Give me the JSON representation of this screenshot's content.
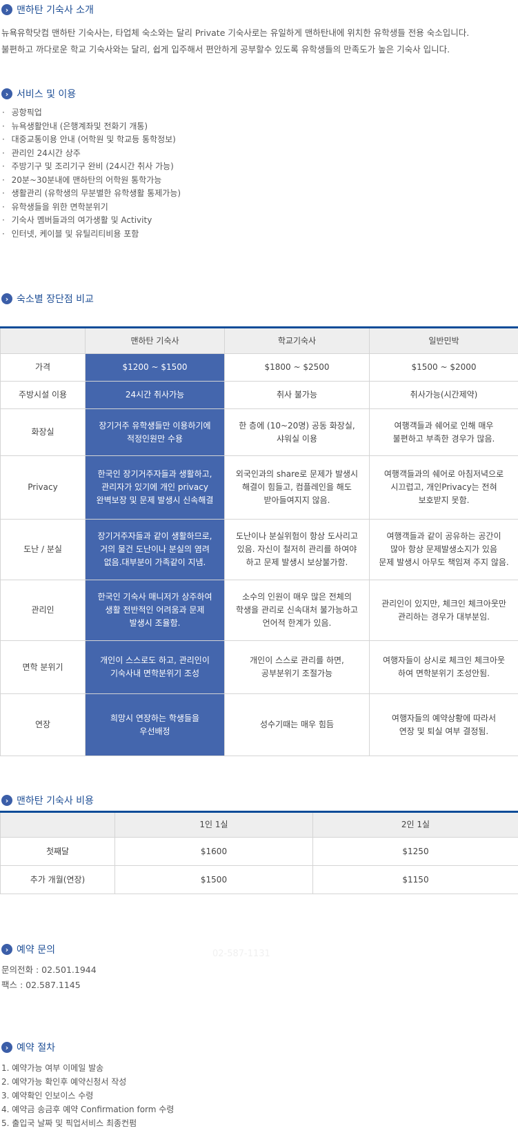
{
  "intro": {
    "title": "맨하탄 기숙사 소개",
    "lines": [
      "뉴욕유학닷컴 맨하탄 기숙사는, 타업체 숙소와는 달리 Private 기숙사로는 유일하게 맨하탄내에 위치한 유학생들 전용 숙소입니다.",
      "불편하고 까다로운 학교 기숙사와는 달리, 쉽게 입주해서 편안하게 공부할수 있도록 유학생들의 만족도가 높은 기숙사 입니다."
    ]
  },
  "services": {
    "title": "서비스 및 이용",
    "items": [
      "공항픽업",
      "뉴욕생활안내 (은행계좌및 전화기 개통)",
      "대중교통이용 안내 (어학원 및 학교등 통학정보)",
      "관리인 24시간 상주",
      "주방기구 및 조리기구 완비 (24시간 취사 가능)",
      "20분~30분내에 맨하탄의 어학원 통학가능",
      "생활관리 (유학생의 무분별한 유학생활 통제가능)",
      "유학생들을 위한 면학분위기",
      "기숙사 멤버들과의 여가생활 및 Activity",
      "인터넷, 케이블 및 유틸리티비용 포함"
    ]
  },
  "compare": {
    "title": "숙소별 장단점 비교",
    "headers": [
      "",
      "맨하탄 기숙사",
      "학교기숙사",
      "일반민박"
    ],
    "rows": [
      [
        "가격",
        "$1200 ~ $1500",
        "$1800 ~ $2500",
        "$1500 ~ $2000"
      ],
      [
        "주방시설 이용",
        "24시간 취사가능",
        "취사 불가능",
        "취사가능(시간제약)"
      ],
      [
        "화장실",
        "장기거주 유학생들만 이용하기에\n적정인원만 수용",
        "한 층에 (10~20명) 공동 화장실,\n샤워실 이용",
        "여행객들과 쉐어로 인해 매우\n불편하고 부족한 경우가 많음."
      ],
      [
        "Privacy",
        "한국인 장기거주자들과 생활하고,\n관리자가 있기에 개인 privacy\n완벽보장 및 문제 발생시 신속해결",
        "외국인과의 share로 문제가 발생시\n해결이 힘들고, 컴플레인을 해도\n받아들여지지 않음.",
        "여행객들과의 쉐어로 아침저녁으로\n시끄럽고, 개인Privacy는 전혀\n보호받지 못함."
      ],
      [
        "도난 / 분실",
        "장기거주자들과 같이 생활하므로,\n거의 물건 도난이나 분실의 염려\n없음.대부분이 가족같이 지냄.",
        "도난이나 분실위험이 항상 도사리고\n있음. 자신이 철저히 관리를 하여야\n하고 문제 발생시 보상불가함.",
        "여행객들과 같이 공유하는 공간이\n많아 항상 문제발생소지가 있음\n문제 발생시 아무도 책임져 주지 않음."
      ],
      [
        "관리인",
        "한국인 기숙사 매니저가 상주하여\n생활 전반적인 어려움과 문제\n발생시 조율함.",
        "소수의 인원이 매우 많은 전체의\n학생을 관리로 신속대처 불가능하고\n언어적 한계가 있음.",
        "관리인이 있지만, 체크인 체크아웃만\n관리하는 경우가 대부분임."
      ],
      [
        "면학 분위기",
        "개인이 스스로도 하고, 관리인이\n기숙사내 면학분위기 조성",
        "개인이 스스로 관리를 하면,\n공부분위기 조절가능",
        "여행자들이 상시로 체크인 체크아웃\n하여 면학분위기 조성안됨."
      ],
      [
        "연장",
        "희망시 연장하는 학생들을\n우선배정",
        "성수기때는 매우 힘듬",
        "여행자들의 예약상황에 따라서\n연장 및 퇴실 여부 결정됨."
      ]
    ]
  },
  "cost": {
    "title": "맨하탄 기숙사 비용",
    "headers": [
      "",
      "1인 1실",
      "2인 1실"
    ],
    "rows": [
      [
        "첫째달",
        "$1600",
        "$1250"
      ],
      [
        "추가 개월(연장)",
        "$1500",
        "$1150"
      ]
    ]
  },
  "inquiry": {
    "title": "예약 문의",
    "faint_phone": "02-587-1131",
    "phone": "문의전화 : 02.501.1944",
    "fax": "팩스 : 02.587.1145"
  },
  "procedure": {
    "title": "예약 절차",
    "items": [
      "1. 예약가능 여부 이메일 발송",
      "2. 예약가능 확인후 예약신청서 작성",
      "3. 예약확인 인보이스 수령",
      "4. 예약금 송금후 예약 Confirmation form 수령",
      "5. 출입국 날짜 및 픽업서비스 최종컨펌"
    ]
  },
  "colors": {
    "accent": "#1f4f96",
    "highlight": "#4466ad",
    "rule": "#0b4c98"
  }
}
